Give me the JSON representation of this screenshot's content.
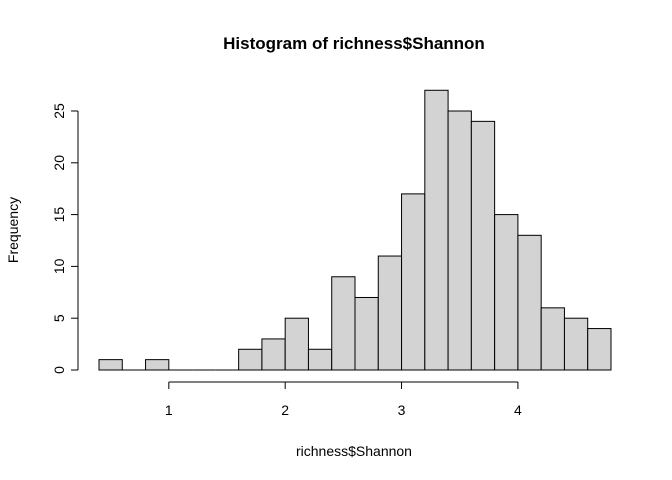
{
  "chart_data": {
    "type": "bar",
    "title": "Histogram of richness$Shannon",
    "xlabel": "richness$Shannon",
    "ylabel": "Frequency",
    "bin_width": 0.2,
    "bins": [
      {
        "x0": 0.4,
        "x1": 0.6,
        "count": 1
      },
      {
        "x0": 0.6,
        "x1": 0.8,
        "count": 0
      },
      {
        "x0": 0.8,
        "x1": 1.0,
        "count": 1
      },
      {
        "x0": 1.0,
        "x1": 1.2,
        "count": 0
      },
      {
        "x0": 1.2,
        "x1": 1.4,
        "count": 0
      },
      {
        "x0": 1.4,
        "x1": 1.6,
        "count": 0
      },
      {
        "x0": 1.6,
        "x1": 1.8,
        "count": 2
      },
      {
        "x0": 1.8,
        "x1": 2.0,
        "count": 3
      },
      {
        "x0": 2.0,
        "x1": 2.2,
        "count": 5
      },
      {
        "x0": 2.2,
        "x1": 2.4,
        "count": 2
      },
      {
        "x0": 2.4,
        "x1": 2.6,
        "count": 9
      },
      {
        "x0": 2.6,
        "x1": 2.8,
        "count": 7
      },
      {
        "x0": 2.8,
        "x1": 3.0,
        "count": 11
      },
      {
        "x0": 3.0,
        "x1": 3.2,
        "count": 17
      },
      {
        "x0": 3.2,
        "x1": 3.4,
        "count": 27
      },
      {
        "x0": 3.4,
        "x1": 3.6,
        "count": 25
      },
      {
        "x0": 3.6,
        "x1": 3.8,
        "count": 24
      },
      {
        "x0": 3.8,
        "x1": 4.0,
        "count": 15
      },
      {
        "x0": 4.0,
        "x1": 4.2,
        "count": 13
      },
      {
        "x0": 4.2,
        "x1": 4.4,
        "count": 6
      },
      {
        "x0": 4.4,
        "x1": 4.6,
        "count": 5
      },
      {
        "x0": 4.6,
        "x1": 4.8,
        "count": 4
      }
    ],
    "x_ticks": [
      1,
      2,
      3,
      4
    ],
    "y_ticks": [
      0,
      5,
      10,
      15,
      20,
      25
    ],
    "xlim": [
      0.4,
      4.8
    ],
    "ylim": [
      0,
      27
    ],
    "grid": false,
    "bar_fill": "#d3d3d3",
    "bar_stroke": "#000000"
  }
}
